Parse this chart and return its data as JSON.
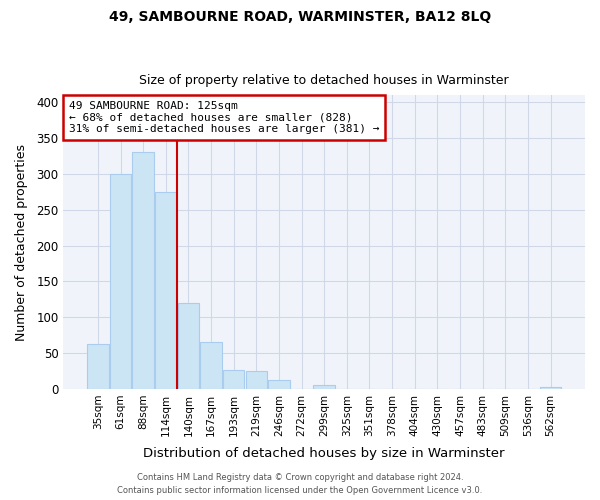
{
  "title": "49, SAMBOURNE ROAD, WARMINSTER, BA12 8LQ",
  "subtitle": "Size of property relative to detached houses in Warminster",
  "xlabel": "Distribution of detached houses by size in Warminster",
  "ylabel": "Number of detached properties",
  "bar_labels": [
    "35sqm",
    "61sqm",
    "88sqm",
    "114sqm",
    "140sqm",
    "167sqm",
    "193sqm",
    "219sqm",
    "246sqm",
    "272sqm",
    "299sqm",
    "325sqm",
    "351sqm",
    "378sqm",
    "404sqm",
    "430sqm",
    "457sqm",
    "483sqm",
    "509sqm",
    "536sqm",
    "562sqm"
  ],
  "bar_values": [
    63,
    300,
    330,
    275,
    120,
    65,
    27,
    25,
    13,
    0,
    5,
    0,
    0,
    0,
    0,
    0,
    0,
    0,
    0,
    0,
    3
  ],
  "bar_color": "#cce5f5",
  "bar_edge_color": "#aaccee",
  "grid_color": "#d0d8e8",
  "background_color": "#ffffff",
  "plot_bg_color": "#f0f4fa",
  "annotation_box_text": "49 SAMBOURNE ROAD: 125sqm\n← 68% of detached houses are smaller (828)\n31% of semi-detached houses are larger (381) →",
  "annotation_box_edge_color": "#cc0000",
  "red_line_x": 3.5,
  "ylim": [
    0,
    410
  ],
  "yticks": [
    0,
    50,
    100,
    150,
    200,
    250,
    300,
    350,
    400
  ],
  "footer_line1": "Contains HM Land Registry data © Crown copyright and database right 2024.",
  "footer_line2": "Contains public sector information licensed under the Open Government Licence v3.0."
}
